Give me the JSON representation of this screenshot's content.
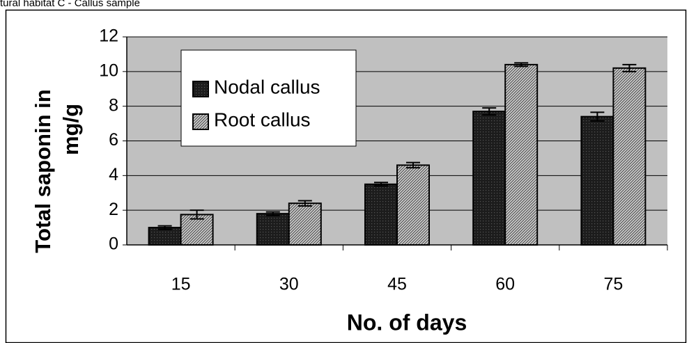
{
  "caption": "tural habitat  C - Callus sample",
  "chart_data": {
    "type": "bar",
    "xlabel": "No. of days",
    "ylabel": [
      "Total saponin in",
      "mg/g"
    ],
    "categories": [
      "15",
      "30",
      "45",
      "60",
      "75"
    ],
    "series": [
      {
        "name": "Nodal callus",
        "color": "#1c1c1c",
        "values": [
          1.0,
          1.8,
          3.5,
          7.7,
          7.4
        ],
        "errors": [
          0.1,
          0.1,
          0.1,
          0.2,
          0.25
        ]
      },
      {
        "name": "Root callus",
        "color": "#cfcfcf",
        "values": [
          1.75,
          2.4,
          4.6,
          10.4,
          10.2
        ],
        "errors": [
          0.25,
          0.15,
          0.15,
          0.1,
          0.2
        ]
      }
    ],
    "ylim": [
      0,
      12
    ],
    "yticks": [
      0,
      2,
      4,
      6,
      8,
      10,
      12
    ],
    "grid": true,
    "plot_background": "#c0c0c0"
  }
}
